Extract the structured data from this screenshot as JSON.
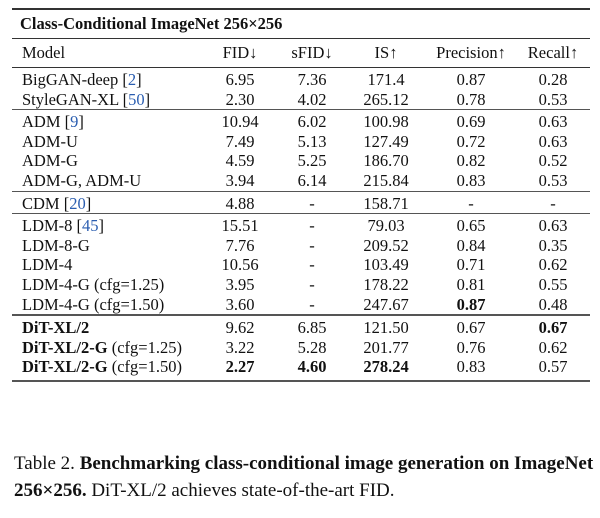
{
  "table": {
    "title": "Class-Conditional ImageNet 256×256",
    "headers": [
      "Model",
      "FID↓",
      "sFID↓",
      "IS↑",
      "Precision↑",
      "Recall↑"
    ],
    "groups": [
      [
        {
          "name": "BigGAN-deep",
          "ref": "2",
          "values": [
            "6.95",
            "7.36",
            "171.4",
            "0.87",
            "0.28"
          ]
        },
        {
          "name": "StyleGAN-XL",
          "ref": "50",
          "values": [
            "2.30",
            "4.02",
            "265.12",
            "0.78",
            "0.53"
          ]
        }
      ],
      [
        {
          "name": "ADM",
          "ref": "9",
          "values": [
            "10.94",
            "6.02",
            "100.98",
            "0.69",
            "0.63"
          ]
        },
        {
          "name": "ADM-U",
          "values": [
            "7.49",
            "5.13",
            "127.49",
            "0.72",
            "0.63"
          ]
        },
        {
          "name": "ADM-G",
          "values": [
            "4.59",
            "5.25",
            "186.70",
            "0.82",
            "0.52"
          ]
        },
        {
          "name": "ADM-G, ADM-U",
          "values": [
            "3.94",
            "6.14",
            "215.84",
            "0.83",
            "0.53"
          ]
        }
      ],
      [
        {
          "name": "CDM",
          "ref": "20",
          "values": [
            "4.88",
            "-",
            "158.71",
            "-",
            "-"
          ]
        }
      ],
      [
        {
          "name": "LDM-8",
          "ref": "45",
          "values": [
            "15.51",
            "-",
            "79.03",
            "0.65",
            "0.63"
          ]
        },
        {
          "name": "LDM-8-G",
          "values": [
            "7.76",
            "-",
            "209.52",
            "0.84",
            "0.35"
          ]
        },
        {
          "name": "LDM-4",
          "values": [
            "10.56",
            "-",
            "103.49",
            "0.71",
            "0.62"
          ]
        },
        {
          "name": "LDM-4-G",
          "suffix": " (cfg=1.25)",
          "values": [
            "3.95",
            "-",
            "178.22",
            "0.81",
            "0.55"
          ]
        },
        {
          "name": "LDM-4-G",
          "suffix": " (cfg=1.50)",
          "values": [
            "3.60",
            "-",
            "247.67",
            "0.87",
            "0.48"
          ],
          "bold": [
            3
          ]
        }
      ],
      [
        {
          "name": "DiT-XL/2",
          "name_bold": true,
          "values": [
            "9.62",
            "6.85",
            "121.50",
            "0.67",
            "0.67"
          ],
          "bold": [
            4
          ]
        },
        {
          "name": "DiT-XL/2-G",
          "name_bold": true,
          "suffix": " (cfg=1.25)",
          "values": [
            "3.22",
            "5.28",
            "201.77",
            "0.76",
            "0.62"
          ]
        },
        {
          "name": "DiT-XL/2-G",
          "name_bold": true,
          "suffix": " (cfg=1.50)",
          "values": [
            "2.27",
            "4.60",
            "278.24",
            "0.83",
            "0.57"
          ],
          "bold": [
            0,
            1,
            2
          ]
        }
      ]
    ]
  },
  "caption": {
    "label": "Table 2.",
    "bold_text": "Benchmarking class-conditional image generation on ImageNet 256×256.",
    "text": "DiT-XL/2 achieves state-of-the-art FID."
  },
  "colors": {
    "reference_link": "#2a5db0"
  }
}
